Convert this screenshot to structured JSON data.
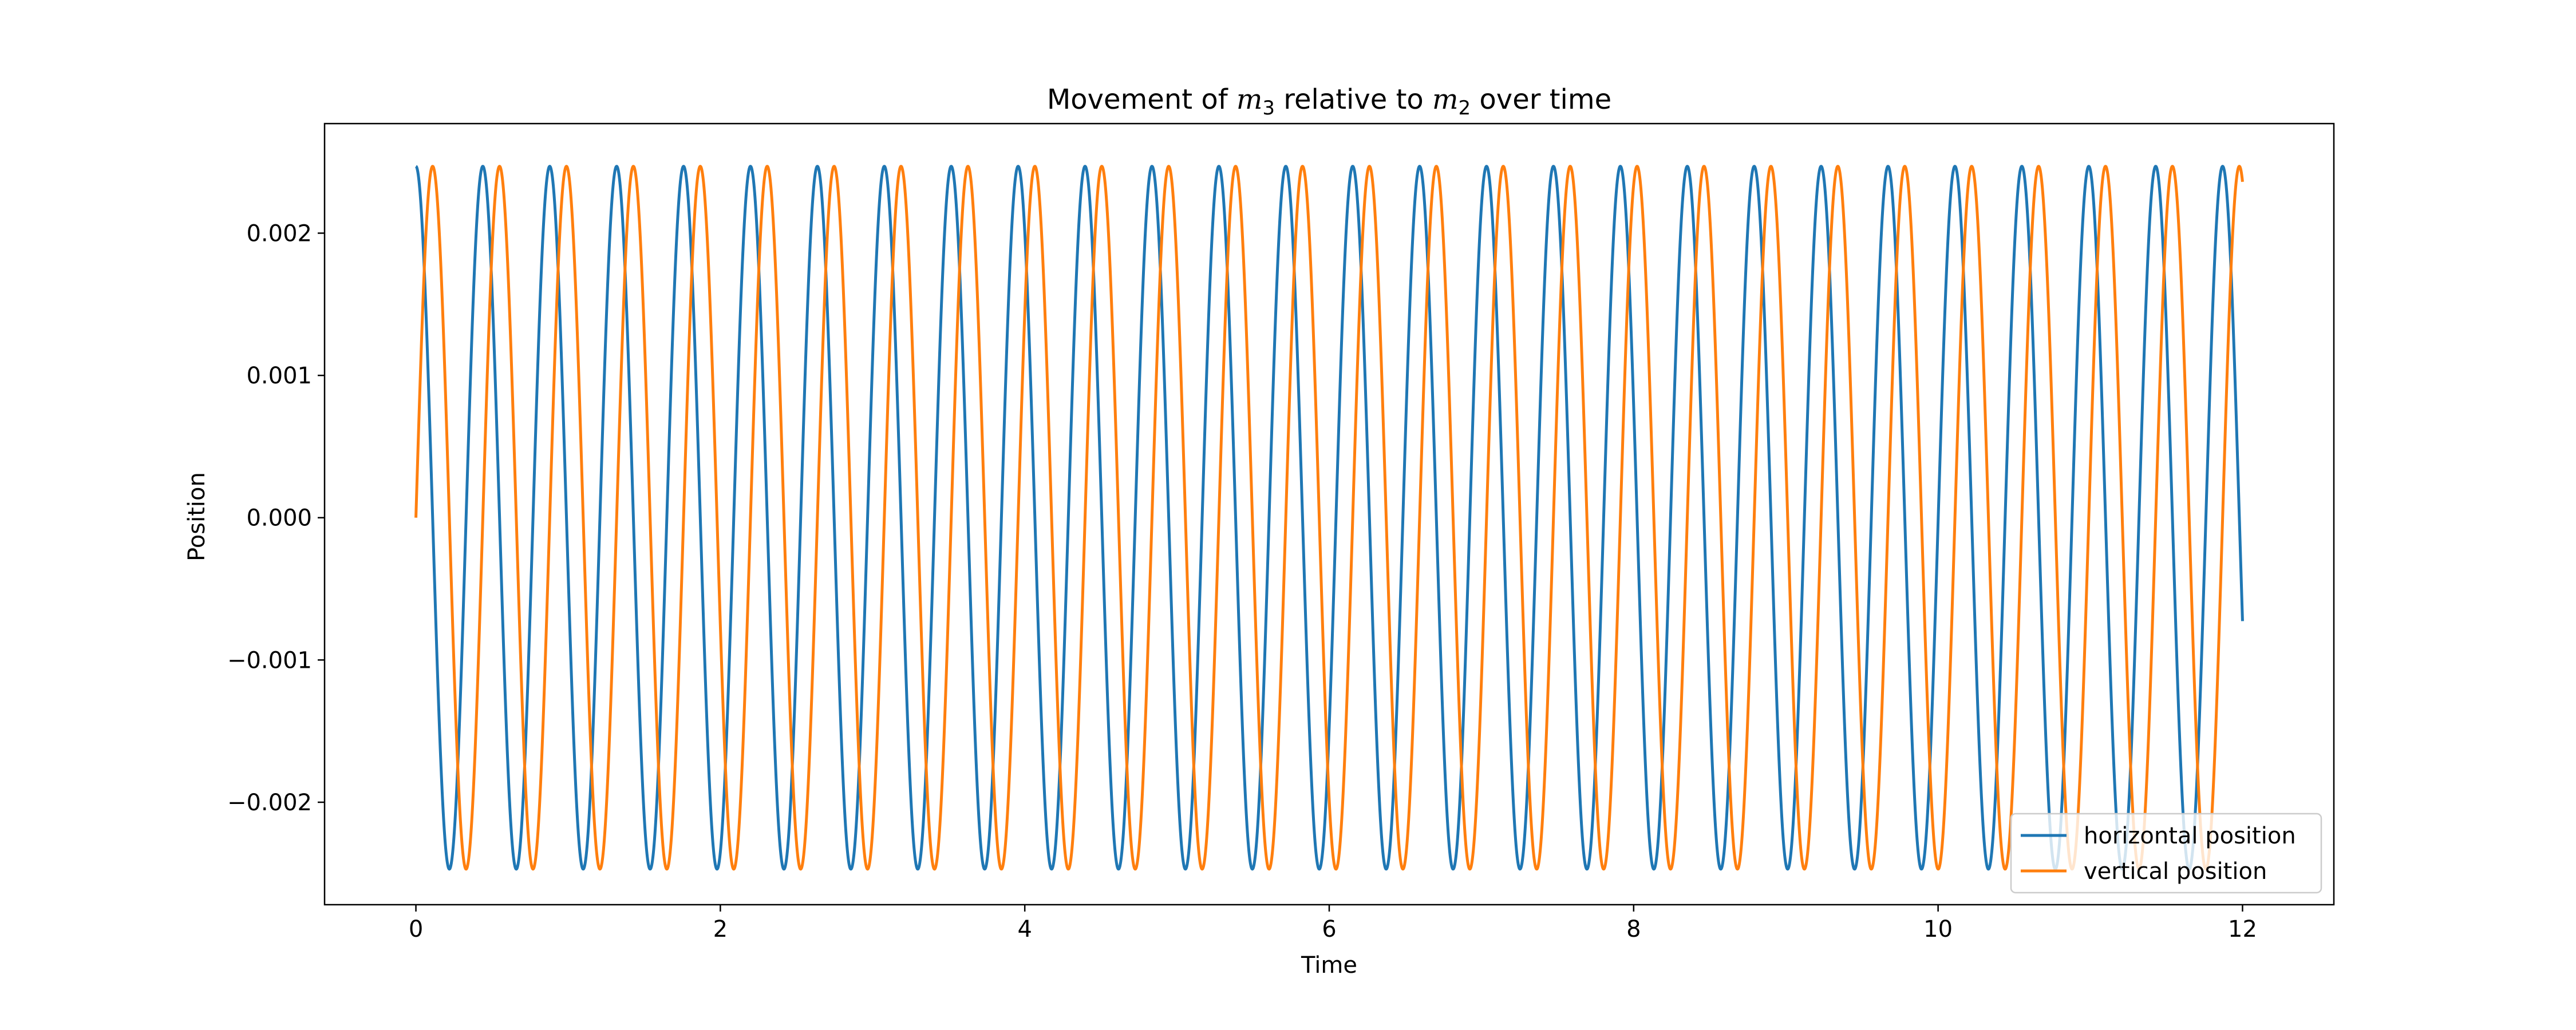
{
  "chart_data": {
    "type": "line",
    "title": {
      "prefix": "Movement of ",
      "var1": "m",
      "sub1": "3",
      "middle": " relative to ",
      "var2": "m",
      "sub2": "2",
      "suffix": " over time"
    },
    "xlabel": "Time",
    "ylabel": "Position",
    "xlim": [
      -0.6,
      12.6
    ],
    "ylim": [
      -0.00272,
      0.00277
    ],
    "xticks": [
      0,
      2,
      4,
      6,
      8,
      10,
      12
    ],
    "xtick_labels": [
      "0",
      "2",
      "4",
      "6",
      "8",
      "10",
      "12"
    ],
    "yticks": [
      0.002,
      0.001,
      0.0,
      -0.001,
      -0.002
    ],
    "ytick_labels": [
      "0.002",
      "0.001",
      "0.000",
      "−0.001",
      "−0.002"
    ],
    "grid": false,
    "legend_position": "lower right",
    "series": [
      {
        "name": "horizontal position",
        "color": "#1f77b4",
        "x_range": [
          0,
          12
        ],
        "form": "cosine",
        "amplitude": 0.00247,
        "period": 0.4396
      },
      {
        "name": "vertical position",
        "color": "#ff7f0e",
        "x_range": [
          0,
          12
        ],
        "form": "sine",
        "amplitude": 0.00247,
        "period": 0.4396
      }
    ]
  }
}
